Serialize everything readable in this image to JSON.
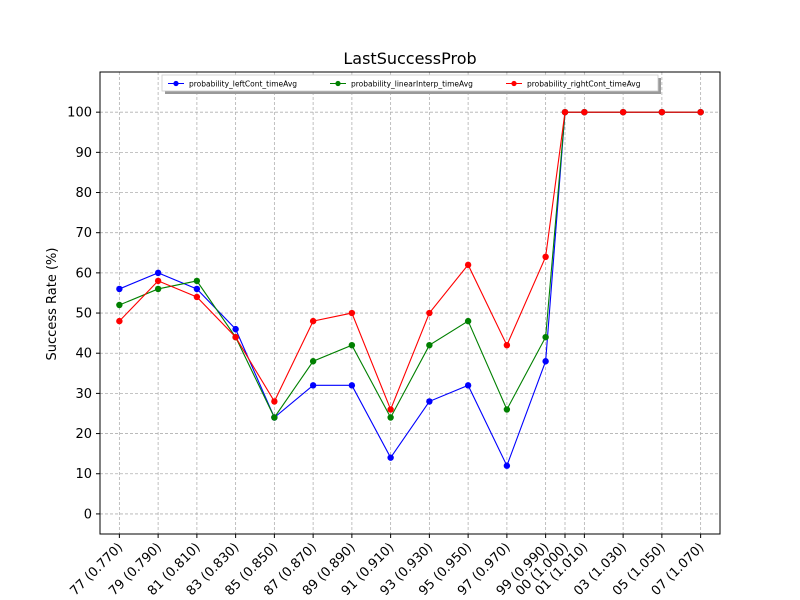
{
  "chart_data": {
    "type": "line",
    "title": "LastSuccessProb",
    "xlabel": "",
    "ylabel": "Success Rate (%)",
    "ylim": [
      -5,
      110
    ],
    "yticks": [
      0,
      10,
      20,
      30,
      40,
      50,
      60,
      70,
      80,
      90,
      100
    ],
    "grid": true,
    "legend_position": "top-center",
    "x": [
      0.77,
      0.79,
      0.81,
      0.83,
      0.85,
      0.87,
      0.89,
      0.91,
      0.93,
      0.95,
      0.97,
      0.99,
      1.0,
      1.01,
      1.03,
      1.05,
      1.07
    ],
    "xlim": [
      0.76,
      1.08
    ],
    "tick_x": [
      0.77,
      0.79,
      0.81,
      0.83,
      0.85,
      0.87,
      0.89,
      0.91,
      0.93,
      0.95,
      0.97,
      0.99,
      1.0,
      1.01,
      1.03,
      1.05,
      1.07
    ],
    "tick_labels": [
      "77 (0.770)",
      "79 (0.790)",
      "81 (0.810)",
      "83 (0.830)",
      "85 (0.850)",
      "87 (0.870)",
      "89 (0.890)",
      "91 (0.910)",
      "93 (0.930)",
      "95 (0.950)",
      "97 (0.970)",
      "99 (0.990)",
      "00 (1.000)",
      "01 (1.010)",
      "03 (1.030)",
      "05 (1.050)",
      "07 (1.070)"
    ],
    "series": [
      {
        "name": "probability_leftCont_timeAvg",
        "color": "#0000ff",
        "values": [
          56,
          60,
          56,
          46,
          24,
          32,
          32,
          14,
          28,
          32,
          12,
          38,
          100,
          100,
          100,
          100,
          100
        ]
      },
      {
        "name": "probability_linearInterp_timeAvg",
        "color": "#008000",
        "values": [
          52,
          56,
          58,
          44,
          24,
          38,
          42,
          24,
          42,
          48,
          26,
          44,
          100,
          100,
          100,
          100,
          100
        ]
      },
      {
        "name": "probability_rightCont_timeAvg",
        "color": "#ff0000",
        "values": [
          48,
          58,
          54,
          44,
          28,
          48,
          50,
          26,
          50,
          62,
          42,
          64,
          100,
          100,
          100,
          100,
          100
        ]
      }
    ]
  }
}
